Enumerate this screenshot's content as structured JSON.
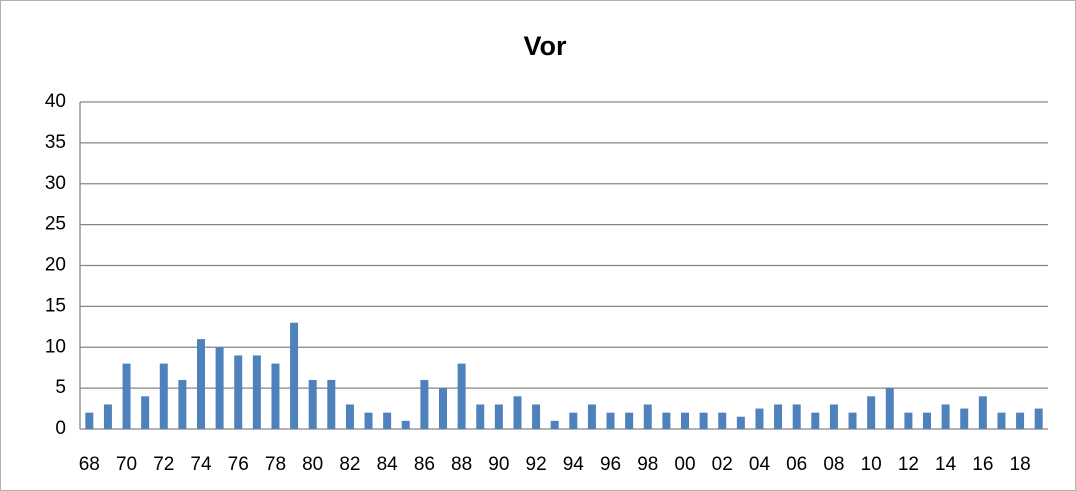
{
  "chart_data": {
    "type": "bar",
    "title": "Vor",
    "categories": [
      "68",
      null,
      "70",
      null,
      "72",
      null,
      "74",
      null,
      "76",
      null,
      "78",
      null,
      "80",
      null,
      "82",
      null,
      "84",
      null,
      "86",
      null,
      "88",
      null,
      "90",
      null,
      "92",
      null,
      "94",
      null,
      "96",
      null,
      "98",
      null,
      "00",
      null,
      "02",
      null,
      "04",
      null,
      "06",
      null,
      "08",
      null,
      "10",
      null,
      "12",
      null,
      "14",
      null,
      "16",
      null,
      "18",
      null
    ],
    "values": [
      2,
      3,
      8,
      4,
      8,
      6,
      11,
      10,
      9,
      9,
      8,
      13,
      6,
      6,
      3,
      2,
      2,
      1,
      6,
      5,
      8,
      3,
      3,
      4,
      3,
      1,
      2,
      3,
      2,
      2,
      3,
      2,
      2,
      2,
      2,
      1.5,
      2.5,
      3,
      3,
      2,
      3,
      2,
      4,
      5,
      2,
      2,
      3,
      2.5,
      4,
      2,
      2,
      2.5
    ],
    "color": "#4f81bd",
    "ylim": [
      0,
      40
    ],
    "yticks": [
      0,
      5,
      10,
      15,
      20,
      25,
      30,
      35,
      40
    ],
    "grid": true
  }
}
